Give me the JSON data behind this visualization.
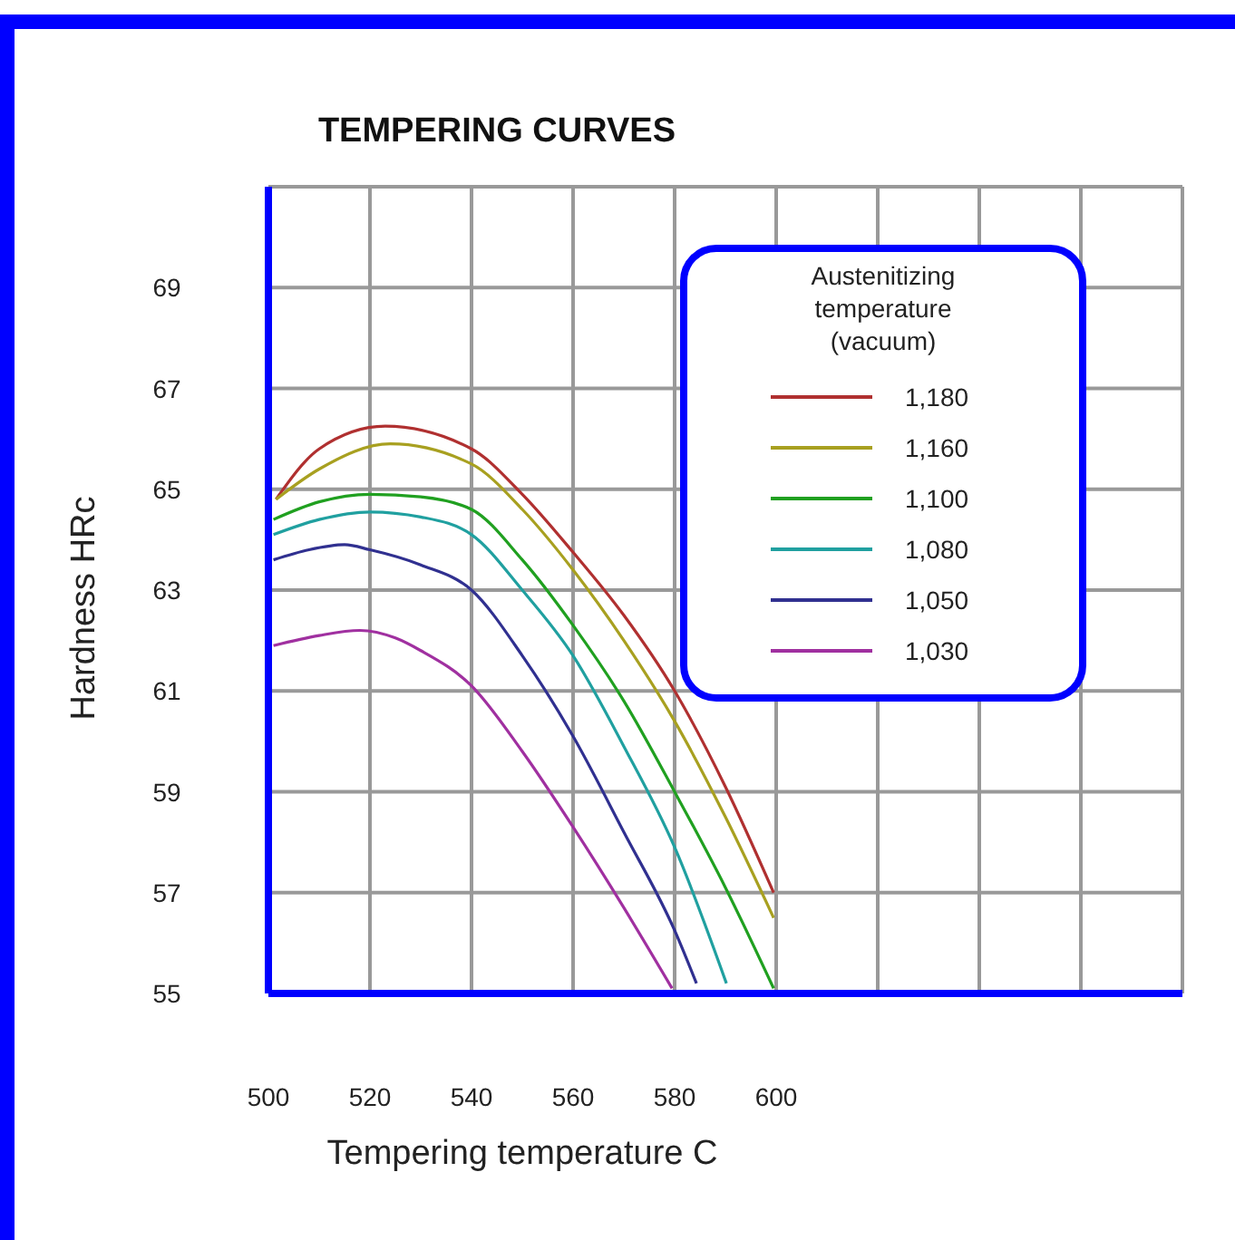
{
  "chart_data": {
    "type": "line",
    "title": "TEMPERING CURVES",
    "xlabel": "Tempering temperature C",
    "ylabel": "Hardness HRc",
    "legend_title": "Austenitizing\ntemperature\n(vacuum)",
    "legend": "top right",
    "grid": true,
    "marker": "none",
    "line_style": "solid",
    "xlim": [
      500,
      680
    ],
    "xticks": [
      500,
      520,
      540,
      560,
      580,
      600,
      {
        "value": 620,
        "label": null
      },
      {
        "value": 640,
        "label": null
      },
      {
        "value": 660,
        "label": null
      },
      {
        "value": 680,
        "label": null
      }
    ],
    "ylim": [
      55,
      71
    ],
    "yticks": [
      55,
      57,
      59,
      61,
      63,
      65,
      67,
      69,
      {
        "value": 71,
        "label": null
      }
    ],
    "series": [
      {
        "name": "1,180",
        "color": "#b03030",
        "x": [
          501.5,
          510,
          523,
          540,
          550,
          560,
          570,
          580,
          590,
          599.5
        ],
        "values": [
          64.8,
          65.8,
          66.25,
          65.8,
          64.9,
          63.75,
          62.5,
          61.0,
          59.1,
          57.0
        ]
      },
      {
        "name": "1,160",
        "color": "#a8a020",
        "x": [
          501.5,
          510,
          524,
          540,
          550,
          560,
          570,
          580,
          590,
          599.5
        ],
        "values": [
          64.8,
          65.4,
          65.9,
          65.5,
          64.6,
          63.4,
          62.0,
          60.4,
          58.5,
          56.5
        ]
      },
      {
        "name": "1,100",
        "color": "#20a020",
        "x": [
          501,
          510,
          520,
          530,
          540,
          550,
          560,
          570,
          580,
          590,
          599.5
        ],
        "values": [
          64.4,
          64.75,
          64.9,
          64.85,
          64.6,
          63.6,
          62.3,
          60.8,
          59.0,
          57.1,
          55.1
        ]
      },
      {
        "name": "1,080",
        "color": "#20a0a0",
        "x": [
          501,
          510,
          520,
          530,
          540,
          550,
          560,
          570,
          580,
          590.2
        ],
        "values": [
          64.1,
          64.4,
          64.55,
          64.45,
          64.1,
          63.0,
          61.7,
          59.9,
          57.9,
          55.2
        ]
      },
      {
        "name": "1,050",
        "color": "#303090",
        "x": [
          501,
          508,
          515,
          520,
          530,
          540,
          550,
          560,
          570,
          580,
          584.3
        ],
        "values": [
          63.6,
          63.8,
          63.9,
          63.8,
          63.5,
          63.0,
          61.7,
          60.1,
          58.2,
          56.25,
          55.2
        ]
      },
      {
        "name": "1,030",
        "color": "#a030a0",
        "x": [
          501,
          510,
          518,
          525,
          530,
          540,
          550,
          560,
          570,
          579.5
        ],
        "values": [
          61.9,
          62.1,
          62.2,
          62.05,
          61.8,
          61.1,
          59.8,
          58.3,
          56.7,
          55.1
        ]
      }
    ]
  }
}
